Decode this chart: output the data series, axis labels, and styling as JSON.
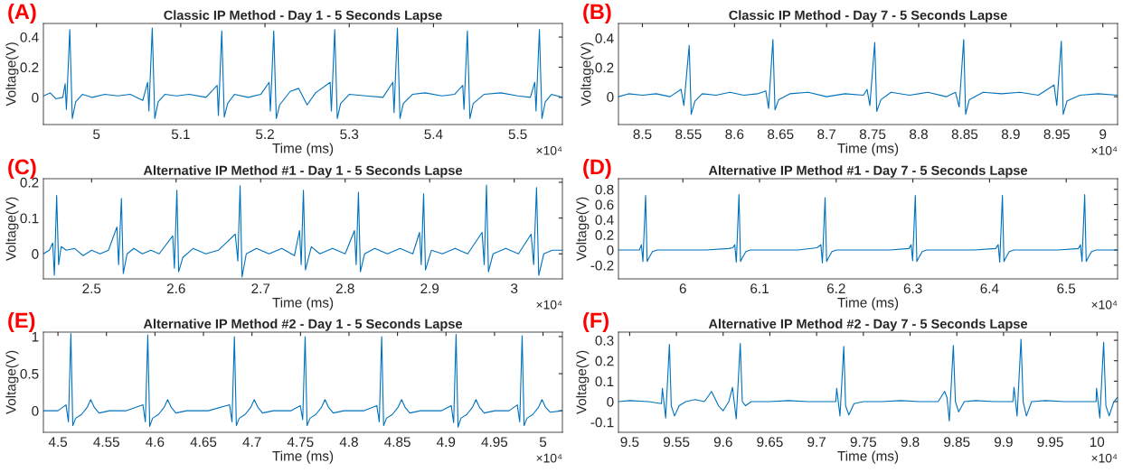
{
  "chart_data": [
    {
      "type": "line",
      "title": "Classic IP Method - Day 1 - 5 Seconds Lapse",
      "xlabel": "Time (ms)",
      "ylabel": "Voltage(V)",
      "annotations": [
        "(A)",
        "×10⁴"
      ],
      "xlim": [
        4.937,
        5.553
      ],
      "ylim": [
        -0.18,
        0.49
      ],
      "xticks": [
        5,
        5.1,
        5.2,
        5.3,
        5.4,
        5.5
      ],
      "yticks": [
        0,
        0.2,
        0.4
      ],
      "grid": false,
      "series": [
        {
          "color": "#0072bd",
          "x": [
            4.937,
            4.945,
            4.952,
            4.96,
            4.9628,
            4.9643,
            4.9683,
            4.9713,
            4.9753,
            4.9833,
            4.995,
            5.01,
            5.025,
            5.04,
            5.055,
            5.0607,
            5.0622,
            5.0662,
            5.0692,
            5.0732,
            5.0812,
            5.095,
            5.11,
            5.13,
            5.1432,
            5.1447,
            5.1487,
            5.1517,
            5.1557,
            5.1637,
            5.18,
            5.195,
            5.2049,
            5.2064,
            5.2104,
            5.2134,
            5.2174,
            5.23,
            5.24,
            5.25,
            5.26,
            5.2773,
            5.2788,
            5.2828,
            5.2858,
            5.2898,
            5.3,
            5.32,
            5.34,
            5.3517,
            5.3532,
            5.3572,
            5.3602,
            5.3642,
            5.375,
            5.39,
            5.41,
            5.425,
            5.4347,
            5.4362,
            5.4402,
            5.4432,
            5.4472,
            5.46,
            5.48,
            5.5,
            5.515,
            5.5202,
            5.5217,
            5.5257,
            5.5287,
            5.5327,
            5.54,
            5.553
          ],
          "values": [
            0.01,
            0.03,
            -0.01,
            0.0,
            0.09,
            -0.08,
            0.45,
            -0.14,
            -0.03,
            0.02,
            0.0,
            0.02,
            0.01,
            0.02,
            -0.02,
            0.1,
            -0.09,
            0.46,
            -0.14,
            -0.03,
            0.02,
            0.01,
            0.02,
            0.0,
            0.08,
            -0.12,
            0.44,
            -0.13,
            -0.04,
            0.02,
            0.0,
            0.02,
            0.1,
            -0.09,
            0.44,
            -0.14,
            -0.05,
            0.04,
            0.06,
            -0.05,
            0.03,
            0.1,
            -0.09,
            0.45,
            -0.14,
            -0.04,
            0.02,
            0.01,
            0.0,
            0.1,
            -0.1,
            0.46,
            -0.14,
            -0.04,
            0.02,
            0.03,
            0.01,
            0.02,
            0.08,
            -0.08,
            0.44,
            -0.14,
            -0.04,
            0.02,
            0.03,
            0.01,
            0.0,
            0.1,
            -0.09,
            0.45,
            -0.14,
            -0.03,
            0.02,
            0.0
          ]
        }
      ]
    },
    {
      "type": "line",
      "title": "Classic IP Method - Day 7 - 5 Seconds Lapse",
      "xlabel": "Time (ms)",
      "ylabel": "Voltage(V)",
      "annotations": [
        "(B)",
        "×10⁴"
      ],
      "xlim": [
        8.474,
        9.016
      ],
      "ylim": [
        -0.19,
        0.5
      ],
      "xticks": [
        8.5,
        8.55,
        8.6,
        8.65,
        8.7,
        8.75,
        8.8,
        8.85,
        8.9,
        8.95,
        9
      ],
      "yticks": [
        0,
        0.2,
        0.4
      ],
      "grid": false,
      "series": [
        {
          "color": "#0072bd",
          "x": [
            8.474,
            8.485,
            8.5,
            8.515,
            8.53,
            8.542,
            8.545,
            8.5508,
            8.553,
            8.557,
            8.565,
            8.58,
            8.595,
            8.61,
            8.625,
            8.634,
            8.637,
            8.6417,
            8.644,
            8.648,
            8.66,
            8.68,
            8.7,
            8.72,
            8.74,
            8.744,
            8.747,
            8.7523,
            8.7545,
            8.759,
            8.77,
            8.79,
            8.81,
            8.83,
            8.84,
            8.844,
            8.8489,
            8.851,
            8.855,
            8.87,
            8.89,
            8.91,
            8.93,
            8.947,
            8.95,
            8.9549,
            8.957,
            8.961,
            8.975,
            8.995,
            9.016
          ],
          "values": [
            0.0,
            0.02,
            0.01,
            0.02,
            0.0,
            0.05,
            -0.06,
            0.35,
            -0.12,
            -0.03,
            0.02,
            0.01,
            0.03,
            0.01,
            0.02,
            0.04,
            -0.08,
            0.39,
            -0.09,
            -0.02,
            0.02,
            0.03,
            0.0,
            0.02,
            0.01,
            0.05,
            -0.06,
            0.37,
            -0.1,
            -0.02,
            0.03,
            0.01,
            0.03,
            0.0,
            0.03,
            -0.07,
            0.39,
            -0.12,
            -0.02,
            0.03,
            0.02,
            0.03,
            0.01,
            0.08,
            -0.06,
            0.38,
            -0.12,
            -0.03,
            0.01,
            0.02,
            0.01
          ]
        }
      ]
    },
    {
      "type": "line",
      "title": "Alternative IP Method #1 - Day 1 - 5 Seconds Lapse",
      "xlabel": "Time (ms)",
      "ylabel": "Voltage(V)",
      "annotations": [
        "(C)",
        "×10⁴"
      ],
      "xlim": [
        2.443,
        3.057
      ],
      "ylim": [
        -0.07,
        0.21
      ],
      "xticks": [
        2.5,
        2.6,
        2.7,
        2.8,
        2.9,
        3
      ],
      "yticks": [
        0,
        0.1,
        0.2
      ],
      "grid": false,
      "series": [
        {
          "color": "#0072bd",
          "x": [
            2.443,
            2.45,
            2.454,
            2.456,
            2.4587,
            2.461,
            2.464,
            2.47,
            2.48,
            2.49,
            2.5,
            2.51,
            2.52,
            2.53,
            2.532,
            2.5353,
            2.5375,
            2.542,
            2.55,
            2.56,
            2.57,
            2.58,
            2.596,
            2.598,
            2.6009,
            2.603,
            2.608,
            2.62,
            2.635,
            2.65,
            2.67,
            2.673,
            2.6757,
            2.678,
            2.683,
            2.695,
            2.71,
            2.725,
            2.74,
            2.746,
            2.748,
            2.7506,
            2.753,
            2.76,
            2.77,
            2.785,
            2.8,
            2.811,
            2.813,
            2.8157,
            2.818,
            2.823,
            2.835,
            2.85,
            2.865,
            2.88,
            2.888,
            2.89,
            2.8928,
            2.895,
            2.902,
            2.915,
            2.93,
            2.945,
            2.962,
            2.9645,
            2.9672,
            2.9695,
            2.975,
            2.99,
            3.005,
            3.02,
            3.023,
            3.0264,
            3.029,
            3.035,
            3.045,
            3.057
          ],
          "values": [
            0.0,
            0.01,
            0.03,
            -0.06,
            0.163,
            -0.03,
            0.02,
            0.01,
            0.015,
            -0.005,
            0.01,
            0.0,
            0.01,
            0.075,
            -0.03,
            0.155,
            -0.055,
            0.0,
            0.015,
            0.0,
            0.01,
            0.0,
            0.05,
            -0.04,
            0.178,
            -0.05,
            -0.01,
            0.015,
            0.0,
            0.01,
            0.055,
            -0.02,
            0.19,
            -0.065,
            0.0,
            0.015,
            0.0,
            0.015,
            -0.005,
            0.065,
            -0.03,
            0.178,
            -0.045,
            0.02,
            0.0,
            0.015,
            0.0,
            0.065,
            -0.03,
            0.172,
            -0.05,
            0.0,
            0.015,
            0.0,
            0.015,
            0.0,
            0.06,
            -0.03,
            0.168,
            -0.045,
            0.01,
            0.0,
            0.015,
            0.0,
            0.06,
            -0.03,
            0.192,
            -0.05,
            0.0,
            0.015,
            0.0,
            0.055,
            -0.03,
            0.185,
            -0.06,
            0.0,
            0.01,
            0.01
          ]
        }
      ]
    },
    {
      "type": "line",
      "title": "Alternative IP Method #1 - Day 7 - 5 Seconds Lapse",
      "xlabel": "Time (ms)",
      "ylabel": "Voltage(V)",
      "annotations": [
        "(D)",
        "×10⁴"
      ],
      "xlim": [
        5.916,
        6.567
      ],
      "ylim": [
        -0.38,
        0.94
      ],
      "xticks": [
        6,
        6.1,
        6.2,
        6.3,
        6.4,
        6.5
      ],
      "yticks": [
        -0.2,
        0,
        0.2,
        0.4,
        0.6,
        0.8
      ],
      "grid": false,
      "series": [
        {
          "color": "#0072bd",
          "x": [
            5.916,
            5.935,
            5.9434,
            5.9459,
            5.9479,
            5.9514,
            5.9534,
            5.9559,
            5.9604,
            5.9664,
            6.0,
            6.03,
            6.06,
            6.0652,
            6.0677,
            6.0697,
            6.0732,
            6.0752,
            6.0777,
            6.0822,
            6.0882,
            6.12,
            6.15,
            6.175,
            6.18,
            6.182,
            6.1855,
            6.1875,
            6.19,
            6.1945,
            6.2005,
            6.23,
            6.27,
            6.295,
            6.2977,
            6.2997,
            6.3032,
            6.3052,
            6.3077,
            6.3122,
            6.3182,
            6.35,
            6.38,
            6.408,
            6.4113,
            6.4133,
            6.4168,
            6.4188,
            6.4213,
            6.4258,
            6.4318,
            6.46,
            6.49,
            6.516,
            6.5186,
            6.5206,
            6.5241,
            6.5261,
            6.5286,
            6.5331,
            6.5391,
            6.567
          ],
          "values": [
            0.0,
            0.0,
            0.0,
            0.07,
            -0.15,
            0.72,
            -0.15,
            -0.1,
            -0.02,
            0.0,
            0.0,
            0.0,
            0.02,
            0.03,
            0.07,
            -0.16,
            0.73,
            -0.15,
            -0.1,
            -0.02,
            0.0,
            0.0,
            0.0,
            0.03,
            0.07,
            -0.17,
            0.69,
            -0.15,
            -0.1,
            -0.02,
            0.0,
            0.0,
            0.0,
            0.02,
            0.07,
            -0.14,
            0.72,
            -0.15,
            -0.1,
            -0.02,
            0.0,
            0.0,
            0.0,
            0.02,
            0.07,
            -0.16,
            0.72,
            -0.15,
            -0.1,
            -0.02,
            0.0,
            0.0,
            0.0,
            0.02,
            0.07,
            -0.15,
            0.73,
            -0.15,
            -0.1,
            -0.02,
            0.0,
            0.0
          ]
        }
      ]
    },
    {
      "type": "line",
      "title": "Alternative IP Method #2 - Day 1 - 5 Seconds Lapse",
      "xlabel": "Time (ms)",
      "ylabel": "Voltage(V)",
      "annotations": [
        "(E)",
        "×10⁴"
      ],
      "xlim": [
        4.485,
        5.02
      ],
      "ylim": [
        -0.29,
        1.06
      ],
      "xticks": [
        4.5,
        4.55,
        4.6,
        4.65,
        4.7,
        4.75,
        4.8,
        4.85,
        4.9,
        4.95,
        5
      ],
      "yticks": [
        0,
        0.5,
        1
      ],
      "grid": false,
      "series": [
        {
          "color": "#0072bd",
          "x": [
            4.485,
            4.5,
            4.5083,
            4.5108,
            4.5133,
            4.5153,
            4.5183,
            4.5243,
            4.5303,
            4.5338,
            4.5373,
            4.5423,
            4.5533,
            4.57,
            4.5876,
            4.5901,
            4.5926,
            4.5946,
            4.5976,
            4.6036,
            4.6096,
            4.6131,
            4.6166,
            4.6216,
            4.6326,
            4.655,
            4.6769,
            4.6794,
            4.6819,
            4.6839,
            4.6869,
            4.6929,
            4.6989,
            4.7024,
            4.7059,
            4.7109,
            4.7219,
            4.74,
            4.7498,
            4.7523,
            4.7548,
            4.7568,
            4.7598,
            4.7658,
            4.7718,
            4.7753,
            4.7788,
            4.7838,
            4.7948,
            4.815,
            4.8287,
            4.8312,
            4.8337,
            4.8357,
            4.8387,
            4.8447,
            4.8507,
            4.8542,
            4.8577,
            4.8627,
            4.8737,
            4.895,
            4.9054,
            4.9079,
            4.9104,
            4.9124,
            4.9154,
            4.9214,
            4.9274,
            4.9309,
            4.9344,
            4.9394,
            4.9504,
            4.965,
            4.9735,
            4.976,
            4.9785,
            4.9805,
            4.9835,
            4.9895,
            4.9955,
            4.999,
            5.0025,
            5.0075,
            5.02
          ],
          "values": [
            0.0,
            0.0,
            0.08,
            -0.15,
            1.04,
            -0.2,
            -0.1,
            -0.05,
            0.05,
            0.15,
            0.05,
            -0.03,
            0.0,
            0.0,
            0.08,
            -0.15,
            1.02,
            -0.21,
            -0.1,
            -0.05,
            0.05,
            0.15,
            0.05,
            -0.03,
            0.0,
            0.0,
            0.08,
            -0.15,
            1.0,
            -0.2,
            -0.1,
            -0.05,
            0.05,
            0.15,
            0.05,
            -0.03,
            0.0,
            0.0,
            0.07,
            -0.12,
            1.0,
            -0.2,
            -0.1,
            -0.05,
            0.05,
            0.15,
            0.05,
            -0.03,
            0.0,
            0.0,
            0.07,
            -0.15,
            1.0,
            -0.2,
            -0.1,
            -0.05,
            0.05,
            0.15,
            0.05,
            -0.03,
            0.0,
            0.0,
            0.07,
            -0.16,
            1.03,
            -0.22,
            -0.1,
            -0.05,
            0.05,
            0.15,
            0.05,
            -0.03,
            0.0,
            0.0,
            0.08,
            -0.15,
            1.01,
            -0.2,
            -0.1,
            -0.05,
            0.05,
            0.15,
            0.05,
            -0.02,
            0.0
          ]
        }
      ]
    },
    {
      "type": "line",
      "title": "Alternative IP Method #2 - Day 7 - 5 Seconds Lapse",
      "xlabel": "Time (ms)",
      "ylabel": "Voltage(V)",
      "annotations": [
        "(F)",
        "×10⁴"
      ],
      "xlim": [
        9.488,
        10.022
      ],
      "ylim": [
        -0.15,
        0.34
      ],
      "xticks": [
        9.5,
        9.55,
        9.6,
        9.65,
        9.7,
        9.75,
        9.8,
        9.85,
        9.9,
        9.95,
        10
      ],
      "yticks": [
        -0.1,
        0,
        0.1,
        0.2,
        0.3
      ],
      "grid": false,
      "series": [
        {
          "color": "#0072bd",
          "x": [
            9.488,
            9.5,
            9.52,
            9.534,
            9.535,
            9.5385,
            9.5425,
            9.5445,
            9.548,
            9.553,
            9.56,
            9.57,
            9.58,
            9.5876,
            9.595,
            9.6,
            9.606,
            9.61,
            9.614,
            9.6183,
            9.6205,
            9.624,
            9.63,
            9.65,
            9.67,
            9.69,
            9.71,
            9.7205,
            9.7215,
            9.725,
            9.7291,
            9.731,
            9.7345,
            9.74,
            9.75,
            9.77,
            9.79,
            9.81,
            9.83,
            9.837,
            9.8395,
            9.842,
            9.8463,
            9.8485,
            9.852,
            9.858,
            9.87,
            9.89,
            9.91,
            9.9112,
            9.9145,
            9.9187,
            9.921,
            9.9245,
            9.93,
            9.945,
            9.965,
            9.985,
            9.999,
            9.9995,
            10.003,
            10.0071,
            10.0095,
            10.013,
            10.018,
            10.022
          ],
          "values": [
            0.0,
            0.005,
            0.0,
            -0.01,
            0.065,
            -0.08,
            0.28,
            -0.02,
            -0.07,
            -0.02,
            0.0,
            0.01,
            0.0,
            0.05,
            -0.02,
            -0.045,
            0.0,
            0.07,
            -0.085,
            0.285,
            0.0,
            -0.02,
            0.0,
            0.0,
            0.005,
            0.0,
            0.0,
            0.0,
            0.065,
            -0.07,
            0.27,
            -0.02,
            -0.065,
            -0.01,
            0.0,
            0.0,
            0.005,
            0.0,
            0.0,
            0.05,
            0.02,
            -0.095,
            0.275,
            0.0,
            -0.05,
            0.0,
            0.005,
            0.0,
            0.0,
            0.07,
            -0.07,
            0.305,
            0.0,
            -0.07,
            0.0,
            0.005,
            0.0,
            0.0,
            0.0,
            0.065,
            -0.08,
            0.29,
            -0.02,
            -0.07,
            0.0,
            0.02
          ]
        }
      ]
    }
  ]
}
